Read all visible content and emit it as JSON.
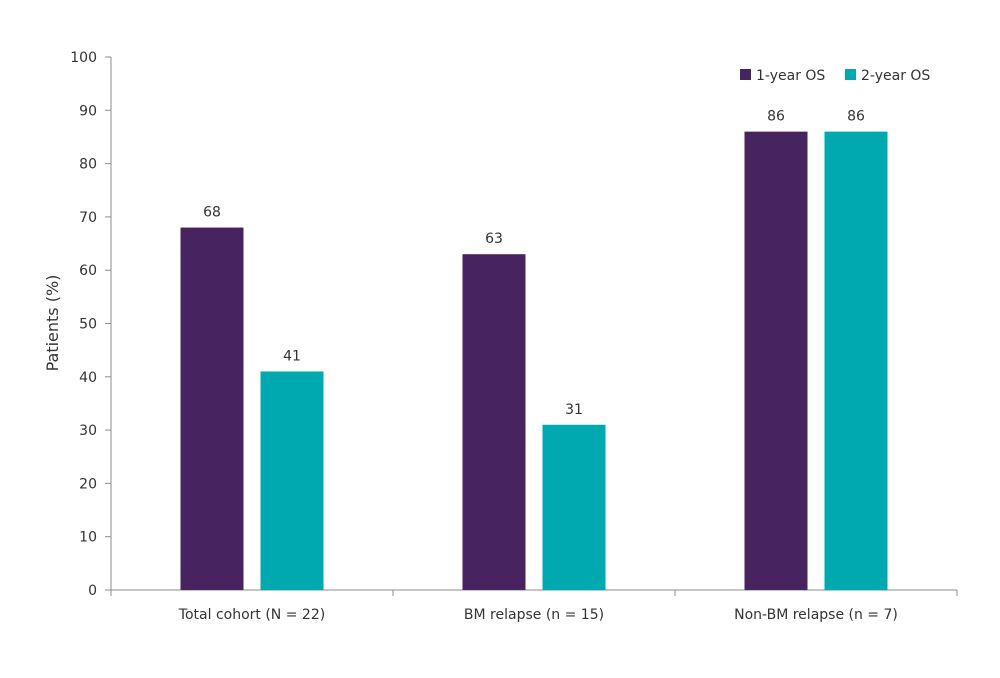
{
  "chart_data": {
    "type": "bar",
    "title": "",
    "xlabel": "",
    "ylabel": "Patients (%)",
    "ylim": [
      0,
      100
    ],
    "yticks": [
      0,
      10,
      20,
      30,
      40,
      50,
      60,
      70,
      80,
      90,
      100
    ],
    "grid": false,
    "legend_position": "top-right",
    "categories": [
      "Total cohort (N = 22)",
      "BM relapse (n = 15)",
      "Non-BM relapse (n = 7)"
    ],
    "series": [
      {
        "name": "1-year OS",
        "color": "#472460",
        "values": [
          68,
          63,
          86
        ]
      },
      {
        "name": "2-year OS",
        "color": "#00A8B0",
        "values": [
          41,
          31,
          86
        ]
      }
    ]
  }
}
